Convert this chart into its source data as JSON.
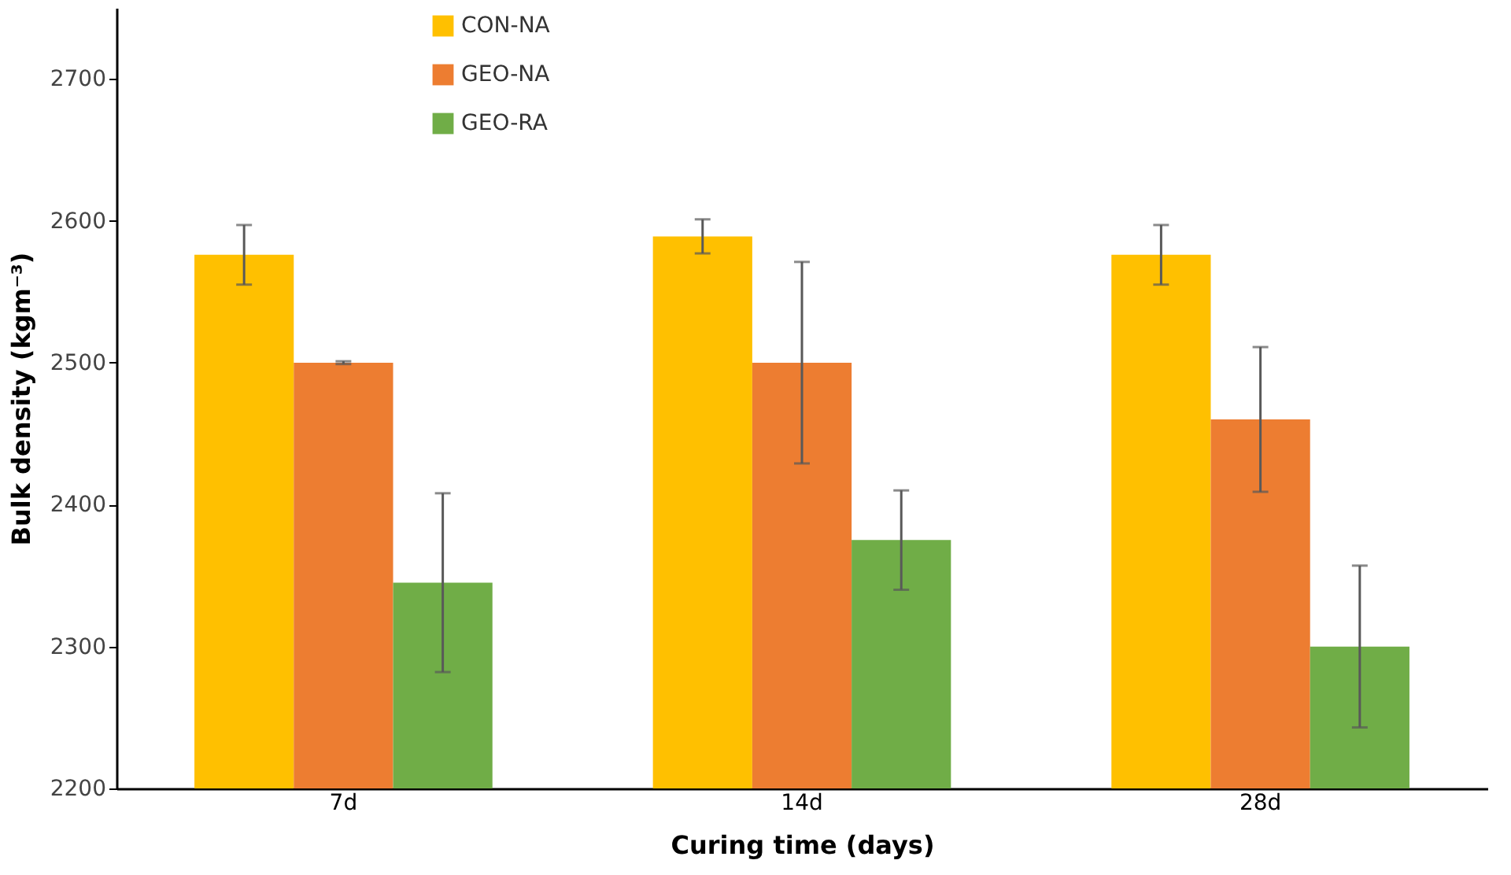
{
  "chart_data": {
    "type": "bar",
    "xlabel": "Curing time (days)",
    "ylabel": "Bulk density (kgm⁻³)",
    "categories": [
      "7d",
      "14d",
      "28d"
    ],
    "series": [
      {
        "name": "CON-NA",
        "color": "#ffc000",
        "values": [
          2576,
          2589,
          2576
        ],
        "errors": [
          21,
          12,
          21
        ]
      },
      {
        "name": "GEO-NA",
        "color": "#ed7d31",
        "values": [
          2500,
          2500,
          2460
        ],
        "errors": [
          1,
          71,
          51
        ]
      },
      {
        "name": "GEO-RA",
        "color": "#70ad47",
        "values": [
          2345,
          2375,
          2300
        ],
        "errors": [
          63,
          35,
          57
        ]
      }
    ],
    "ylim": [
      2200,
      2750
    ],
    "yticks": [
      2200,
      2300,
      2400,
      2500,
      2600,
      2700
    ],
    "grid": false,
    "legend": "top"
  }
}
